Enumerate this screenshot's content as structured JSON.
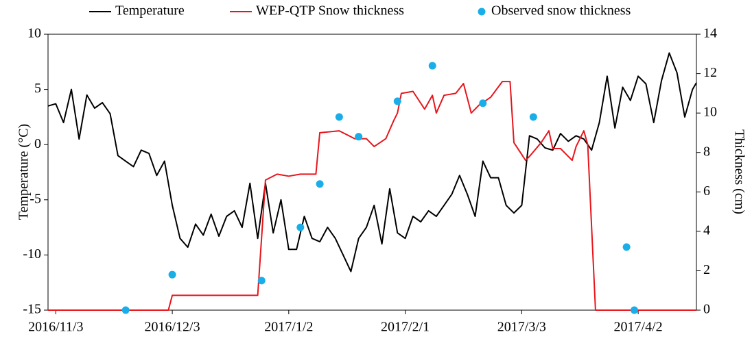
{
  "chart_data": {
    "type": "line",
    "ylabel": "Temperature (°C)",
    "y2label": "Thickness (cm)",
    "xlim": [
      "2016/11/1",
      "2017/4/17"
    ],
    "xticks": [
      "2016/11/3",
      "2016/12/3",
      "2017/1/2",
      "2017/2/1",
      "2017/3/3",
      "2017/4/2"
    ],
    "ylim": [
      -15,
      10
    ],
    "yticks": [
      -15,
      -10,
      -5,
      0,
      5,
      10
    ],
    "y2lim": [
      0,
      14
    ],
    "y2ticks": [
      0,
      2,
      4,
      6,
      8,
      10,
      12,
      14
    ],
    "grid": false,
    "legend": "top",
    "series": [
      {
        "name": "Temperature",
        "type": "line",
        "color": "#000000",
        "axis": "y",
        "x": [
          "2016/11/1",
          "2016/11/3",
          "2016/11/5",
          "2016/11/7",
          "2016/11/9",
          "2016/11/11",
          "2016/11/13",
          "2016/11/15",
          "2016/11/17",
          "2016/11/19",
          "2016/11/21",
          "2016/11/23",
          "2016/11/25",
          "2016/11/27",
          "2016/11/29",
          "2016/12/1",
          "2016/12/3",
          "2016/12/5",
          "2016/12/7",
          "2016/12/9",
          "2016/12/11",
          "2016/12/13",
          "2016/12/15",
          "2016/12/17",
          "2016/12/19",
          "2016/12/21",
          "2016/12/23",
          "2016/12/25",
          "2016/12/27",
          "2016/12/29",
          "2016/12/31",
          "2017/1/2",
          "2017/1/4",
          "2017/1/6",
          "2017/1/8",
          "2017/1/10",
          "2017/1/12",
          "2017/1/14",
          "2017/1/16",
          "2017/1/18",
          "2017/1/20",
          "2017/1/22",
          "2017/1/24",
          "2017/1/26",
          "2017/1/28",
          "2017/1/30",
          "2017/2/1",
          "2017/2/3",
          "2017/2/5",
          "2017/2/7",
          "2017/2/9",
          "2017/2/11",
          "2017/2/13",
          "2017/2/15",
          "2017/2/17",
          "2017/2/19",
          "2017/2/21",
          "2017/2/23",
          "2017/2/25",
          "2017/2/27",
          "2017/3/1",
          "2017/3/3",
          "2017/3/5",
          "2017/3/7",
          "2017/3/9",
          "2017/3/11",
          "2017/3/13",
          "2017/3/15",
          "2017/3/17",
          "2017/3/19",
          "2017/3/21",
          "2017/3/23",
          "2017/3/25",
          "2017/3/27",
          "2017/3/29",
          "2017/3/31",
          "2017/4/2",
          "2017/4/4",
          "2017/4/6",
          "2017/4/8",
          "2017/4/10",
          "2017/4/12",
          "2017/4/14",
          "2017/4/16",
          "2017/4/17"
        ],
        "values": [
          3.5,
          3.7,
          2.0,
          5.0,
          0.5,
          4.5,
          3.3,
          3.8,
          2.8,
          -1.0,
          -1.5,
          -2.0,
          -0.5,
          -0.8,
          -2.8,
          -1.5,
          -5.5,
          -8.5,
          -9.3,
          -7.2,
          -8.2,
          -6.3,
          -8.3,
          -6.5,
          -6.0,
          -7.5,
          -3.5,
          -8.5,
          -3.5,
          -8.0,
          -5.0,
          -9.5,
          -9.5,
          -6.5,
          -8.5,
          -8.8,
          -7.5,
          -8.5,
          -10.0,
          -11.5,
          -8.5,
          -7.5,
          -5.5,
          -9.0,
          -4.0,
          -8.0,
          -8.5,
          -6.5,
          -7.0,
          -6.0,
          -6.5,
          -5.5,
          -4.5,
          -2.8,
          -4.5,
          -6.5,
          -1.5,
          -3.0,
          -3.0,
          -5.5,
          -6.2,
          -5.5,
          0.8,
          0.5,
          -0.3,
          -0.5,
          1.0,
          0.3,
          0.8,
          0.5,
          -0.5,
          2.0,
          6.2,
          1.5,
          5.2,
          4.0,
          6.2,
          5.5,
          2.0,
          5.8,
          8.3,
          6.5,
          2.5,
          5.0,
          5.6
        ]
      },
      {
        "name": "WEP-QTP Snow thickness",
        "type": "line",
        "color": "#e8151b",
        "axis": "y2",
        "x": [
          "2016/11/1",
          "2016/12/2",
          "2016/12/3",
          "2016/12/25",
          "2016/12/27",
          "2016/12/30",
          "2017/1/2",
          "2017/1/5",
          "2017/1/9",
          "2017/1/10",
          "2017/1/15",
          "2017/1/19",
          "2017/1/22",
          "2017/1/24",
          "2017/1/27",
          "2017/1/29",
          "2017/1/30",
          "2017/1/31",
          "2017/2/3",
          "2017/2/6",
          "2017/2/8",
          "2017/2/9",
          "2017/2/11",
          "2017/2/14",
          "2017/2/16",
          "2017/2/18",
          "2017/2/20",
          "2017/2/23",
          "2017/2/26",
          "2017/2/28",
          "2017/3/1",
          "2017/3/4",
          "2017/3/5",
          "2017/3/8",
          "2017/3/10",
          "2017/3/11",
          "2017/3/13",
          "2017/3/16",
          "2017/3/17",
          "2017/3/19",
          "2017/3/20",
          "2017/3/22",
          "2017/4/17"
        ],
        "values": [
          0,
          0,
          0.75,
          0.75,
          6.6,
          6.9,
          6.8,
          6.9,
          6.9,
          9.0,
          9.1,
          8.7,
          8.7,
          8.3,
          8.7,
          9.6,
          10.0,
          11.0,
          11.1,
          10.2,
          10.9,
          10.0,
          10.9,
          11.0,
          11.5,
          10.0,
          10.4,
          10.8,
          11.6,
          11.6,
          8.5,
          7.6,
          7.8,
          8.5,
          9.1,
          8.2,
          8.2,
          7.6,
          8.3,
          9.1,
          8.4,
          0,
          0
        ]
      },
      {
        "name": "Observed snow thickness",
        "type": "scatter",
        "color": "#1aaee8",
        "axis": "y2",
        "x": [
          "2016/11/21",
          "2016/12/3",
          "2016/12/26",
          "2017/1/5",
          "2017/1/10",
          "2017/1/15",
          "2017/1/20",
          "2017/1/30",
          "2017/2/8",
          "2017/2/21",
          "2017/3/6",
          "2017/3/30",
          "2017/4/1"
        ],
        "values": [
          0,
          1.8,
          1.5,
          4.2,
          6.4,
          9.8,
          8.8,
          10.6,
          12.4,
          10.5,
          9.8,
          3.2,
          0
        ]
      }
    ]
  }
}
